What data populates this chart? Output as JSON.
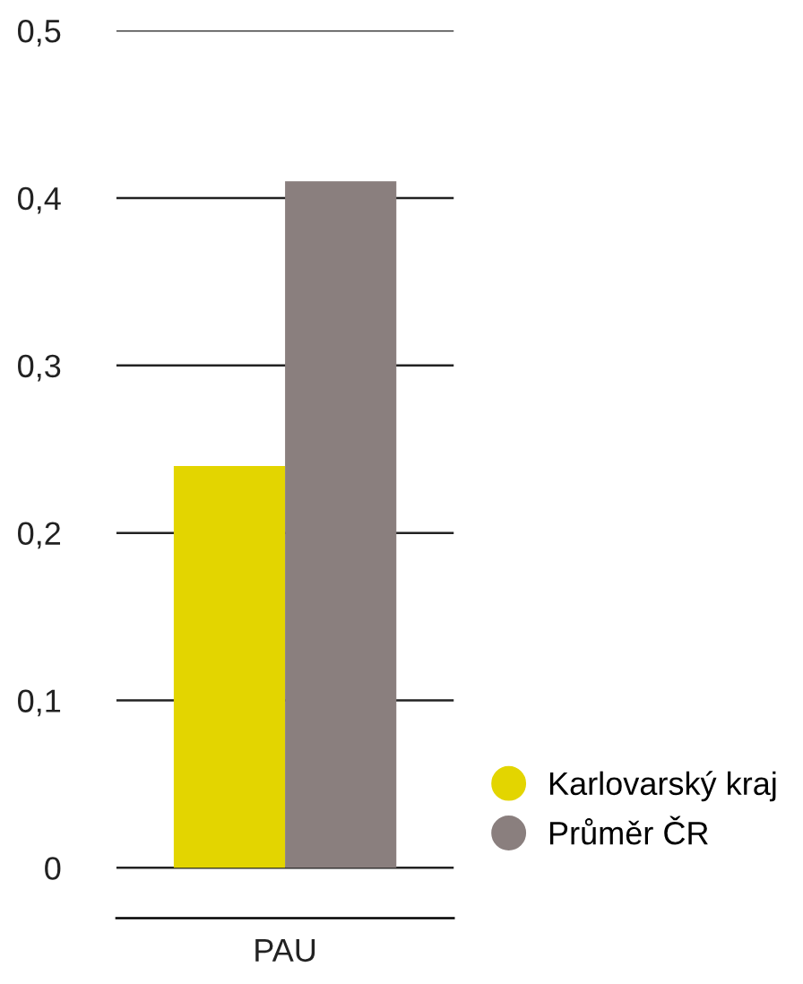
{
  "chart_data": {
    "type": "bar",
    "categories": [
      "PAU"
    ],
    "series": [
      {
        "name": "Karlovarský kraj",
        "color": "#e3d500",
        "values": [
          0.24
        ]
      },
      {
        "name": "Průměr ČR",
        "color": "#8a7f7e",
        "values": [
          0.41
        ]
      }
    ],
    "ylim": [
      -0.03,
      0.5
    ],
    "yticks": [
      {
        "value": 0,
        "label": "0"
      },
      {
        "value": 0.1,
        "label": "0,1"
      },
      {
        "value": 0.2,
        "label": "0,2"
      },
      {
        "value": 0.3,
        "label": "0,3"
      },
      {
        "value": 0.4,
        "label": "0,4"
      },
      {
        "value": 0.5,
        "label": "0,5"
      }
    ],
    "grid": "y",
    "legend": "bottom right",
    "marker": "circle"
  }
}
